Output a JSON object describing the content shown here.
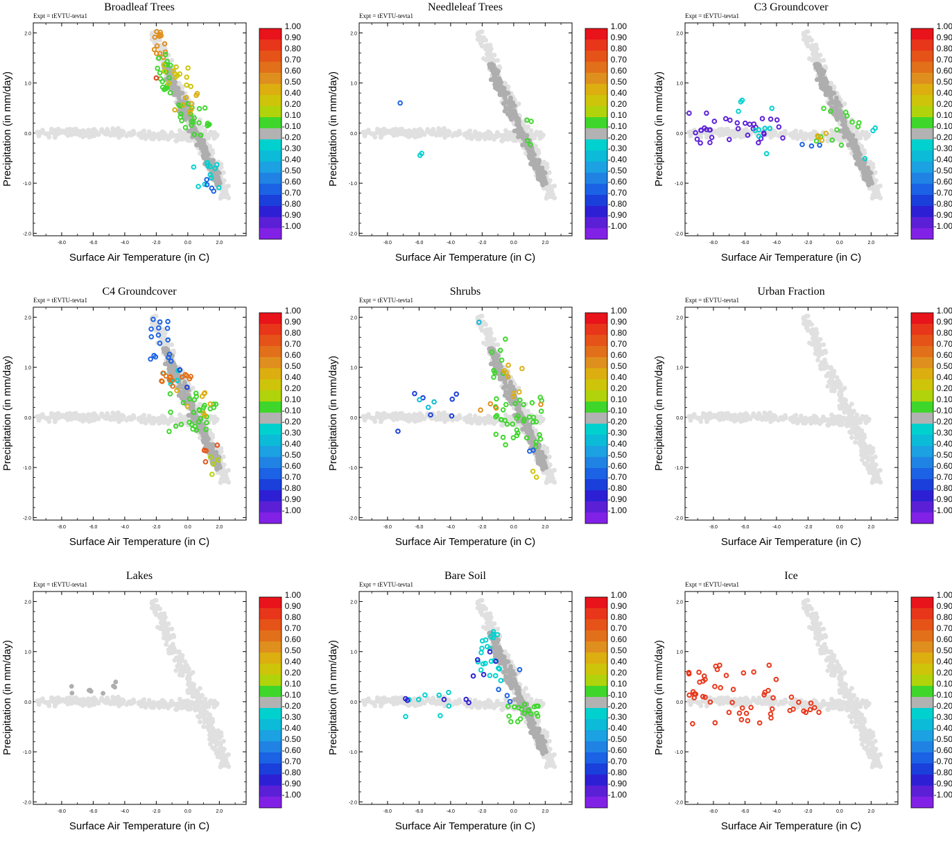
{
  "figure": {
    "experiment_label": "Expt = tEVTU-tevta1"
  },
  "chart_data": {
    "type": "scatter",
    "xlabel": "Surface Air Temperature (in C)",
    "ylabel": "Precipitation (in mm/day)",
    "xlim": [
      -9.8,
      3.7
    ],
    "ylim": [
      -2.05,
      2.2
    ],
    "x_ticks": [
      "-8.0",
      "-6.0",
      "-4.0",
      "-2.0",
      "0.0",
      "2.0"
    ],
    "y_ticks": [
      "2.0",
      "1.0",
      "0.0",
      "-1.0",
      "-2.0"
    ],
    "colorbar": {
      "labels": [
        "1.00",
        "0.90",
        "0.80",
        "0.70",
        "0.60",
        "0.50",
        "0.40",
        "0.20",
        "0.10",
        "-0.10",
        "-0.20",
        "-0.30",
        "-0.40",
        "-0.50",
        "-0.60",
        "-0.70",
        "-0.80",
        "-0.90",
        "-1.00"
      ],
      "colors": [
        "#e8131b",
        "#e8361a",
        "#e55318",
        "#e2701a",
        "#df8f1e",
        "#dcae0f",
        "#cec40a",
        "#b0d30b",
        "#3fd62c",
        "#b2b2b2",
        "#00d1cf",
        "#0cbbd8",
        "#1ca1e2",
        "#2083e4",
        "#1b62e4",
        "#1a3fda",
        "#2d20d4",
        "#5b20d6",
        "#8221e6"
      ]
    },
    "panels": [
      {
        "title": "Broadleaf Trees",
        "clusters": [
          {
            "value": 0.55,
            "n": 14,
            "x": [
              -2.2,
              -1.4
            ],
            "y": [
              1.5,
              2.1
            ]
          },
          {
            "value": 0.15,
            "n": 18,
            "x": [
              -2.0,
              -0.8
            ],
            "y": [
              0.7,
              1.6
            ]
          },
          {
            "value": 0.35,
            "n": 14,
            "x": [
              -1.6,
              0.3
            ],
            "y": [
              0.9,
              1.4
            ]
          },
          {
            "value": 0.15,
            "n": 22,
            "x": [
              -0.6,
              1.5
            ],
            "y": [
              -0.1,
              0.6
            ]
          },
          {
            "value": 0.45,
            "n": 8,
            "x": [
              -1.0,
              0.6
            ],
            "y": [
              0.4,
              0.8
            ]
          },
          {
            "value": -0.25,
            "n": 12,
            "x": [
              0.3,
              2.3
            ],
            "y": [
              -1.2,
              -0.5
            ]
          },
          {
            "value": -0.55,
            "n": 4,
            "x": [
              1.2,
              1.8
            ],
            "y": [
              -1.2,
              -0.9
            ]
          },
          {
            "value": 0.95,
            "n": 1,
            "x": [
              -2.0,
              -2.0
            ],
            "y": [
              1.1,
              1.1
            ]
          }
        ]
      },
      {
        "title": "Needleleaf Trees",
        "clusters": [
          {
            "value": -0.55,
            "n": 1,
            "x": [
              -7.2,
              -7.2
            ],
            "y": [
              0.6,
              0.6
            ]
          },
          {
            "value": -0.25,
            "n": 2,
            "x": [
              -6.6,
              -5.6
            ],
            "y": [
              -0.45,
              -0.35
            ]
          },
          {
            "value": 0.15,
            "n": 4,
            "x": [
              0.0,
              1.2
            ],
            "y": [
              -0.4,
              0.7
            ]
          }
        ]
      },
      {
        "title": "C3 Groundcover",
        "clusters": [
          {
            "value": -0.9,
            "n": 34,
            "x": [
              -9.6,
              -3.5
            ],
            "y": [
              -0.2,
              0.4
            ]
          },
          {
            "value": -0.25,
            "n": 10,
            "x": [
              -6.8,
              -3.8
            ],
            "y": [
              -0.45,
              0.85
            ]
          },
          {
            "value": 0.15,
            "n": 12,
            "x": [
              -1.6,
              1.3
            ],
            "y": [
              -0.3,
              0.5
            ]
          },
          {
            "value": 0.45,
            "n": 4,
            "x": [
              -1.8,
              -0.6
            ],
            "y": [
              -0.2,
              0.0
            ]
          },
          {
            "value": -0.55,
            "n": 3,
            "x": [
              -2.4,
              -1.0
            ],
            "y": [
              -0.3,
              -0.1
            ]
          },
          {
            "value": -0.25,
            "n": 3,
            "x": [
              1.5,
              2.6
            ],
            "y": [
              -0.9,
              0.2
            ]
          }
        ]
      },
      {
        "title": "C4 Groundcover",
        "clusters": [
          {
            "value": -0.55,
            "n": 16,
            "x": [
              -2.4,
              -1.0
            ],
            "y": [
              1.1,
              2.0
            ]
          },
          {
            "value": -0.25,
            "n": 6,
            "x": [
              -1.8,
              -0.4
            ],
            "y": [
              0.6,
              1.3
            ]
          },
          {
            "value": 0.65,
            "n": 14,
            "x": [
              -1.8,
              0.4
            ],
            "y": [
              0.5,
              0.9
            ]
          },
          {
            "value": 0.15,
            "n": 30,
            "x": [
              -1.4,
              1.8
            ],
            "y": [
              -0.3,
              0.5
            ]
          },
          {
            "value": 0.45,
            "n": 8,
            "x": [
              -0.8,
              1.5
            ],
            "y": [
              0.0,
              0.6
            ]
          },
          {
            "value": -0.75,
            "n": 2,
            "x": [
              -1.2,
              0.6
            ],
            "y": [
              0.4,
              1.1
            ]
          },
          {
            "value": 0.75,
            "n": 4,
            "x": [
              1.0,
              2.0
            ],
            "y": [
              -0.9,
              -0.5
            ]
          },
          {
            "value": 0.2,
            "n": 4,
            "x": [
              1.2,
              2.0
            ],
            "y": [
              -1.2,
              -0.6
            ]
          }
        ]
      },
      {
        "title": "Shrubs",
        "clusters": [
          {
            "value": -0.75,
            "n": 7,
            "x": [
              -7.8,
              -3.6
            ],
            "y": [
              -0.45,
              0.85
            ]
          },
          {
            "value": -0.35,
            "n": 3,
            "x": [
              -7.2,
              -2.4
            ],
            "y": [
              0.05,
              0.6
            ]
          },
          {
            "value": 0.15,
            "n": 38,
            "x": [
              -1.2,
              1.8
            ],
            "y": [
              -0.6,
              0.4
            ]
          },
          {
            "value": 0.15,
            "n": 8,
            "x": [
              -2.0,
              -0.4
            ],
            "y": [
              0.6,
              1.6
            ]
          },
          {
            "value": 0.45,
            "n": 8,
            "x": [
              -0.6,
              0.9
            ],
            "y": [
              0.4,
              1.2
            ]
          },
          {
            "value": 0.55,
            "n": 4,
            "x": [
              -2.4,
              2.8
            ],
            "y": [
              0.1,
              0.3
            ]
          },
          {
            "value": 0.35,
            "n": 2,
            "x": [
              1.2,
              1.6
            ],
            "y": [
              -1.25,
              -0.9
            ]
          },
          {
            "value": -0.55,
            "n": 2,
            "x": [
              0.8,
              1.4
            ],
            "y": [
              -0.9,
              -0.6
            ]
          },
          {
            "value": -0.35,
            "n": 1,
            "x": [
              -2.2,
              -2.2
            ],
            "y": [
              1.9,
              1.9
            ]
          }
        ]
      },
      {
        "title": "Urban Fraction",
        "clusters": []
      },
      {
        "title": "Lakes",
        "clusters": [
          {
            "value": -0.1,
            "n": 9,
            "x": [
              -9.0,
              -3.8
            ],
            "y": [
              0.1,
              0.4
            ]
          }
        ]
      },
      {
        "title": "Bare Soil",
        "clusters": [
          {
            "value": -0.25,
            "n": 22,
            "x": [
              -2.4,
              -0.8
            ],
            "y": [
              0.4,
              1.4
            ]
          },
          {
            "value": -0.85,
            "n": 5,
            "x": [
              -2.8,
              -0.6
            ],
            "y": [
              0.5,
              1.1
            ]
          },
          {
            "value": -0.25,
            "n": 8,
            "x": [
              -7.2,
              -3.0
            ],
            "y": [
              -0.3,
              0.2
            ]
          },
          {
            "value": -0.85,
            "n": 5,
            "x": [
              -7.0,
              -2.6
            ],
            "y": [
              -0.2,
              0.1
            ]
          },
          {
            "value": 0.15,
            "n": 18,
            "x": [
              -0.4,
              1.6
            ],
            "y": [
              -0.4,
              -0.05
            ]
          },
          {
            "value": -0.55,
            "n": 4,
            "x": [
              -1.2,
              0.5
            ],
            "y": [
              -0.4,
              0.8
            ]
          }
        ]
      },
      {
        "title": "Ice",
        "clusters": [
          {
            "value": 0.95,
            "n": 44,
            "x": [
              -9.6,
              -4.0
            ],
            "y": [
              -0.45,
              0.85
            ]
          },
          {
            "value": 0.95,
            "n": 10,
            "x": [
              -4.0,
              -1.0
            ],
            "y": [
              -0.3,
              0.1
            ]
          }
        ]
      }
    ]
  }
}
